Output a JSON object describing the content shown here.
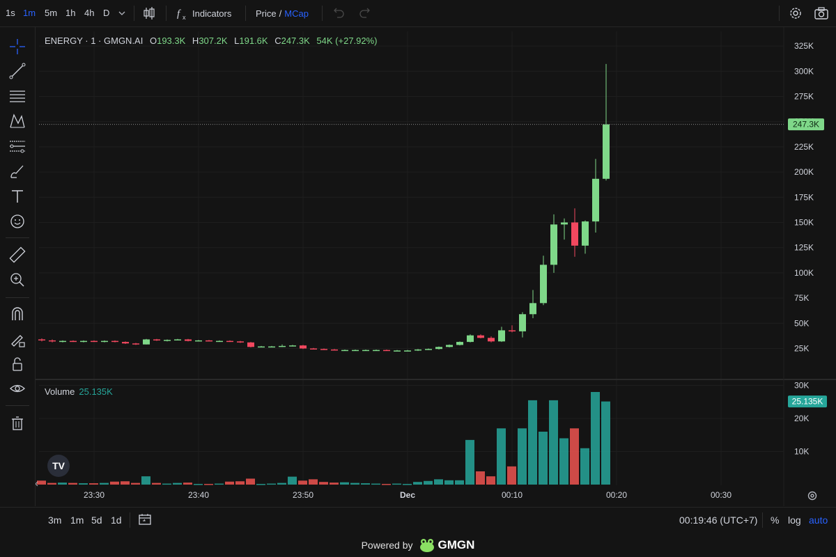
{
  "toolbar": {
    "timeframes": [
      "1s",
      "1m",
      "5m",
      "1h",
      "4h",
      "D"
    ],
    "active_timeframe": "1m",
    "indicators_label": "Indicators",
    "price_label": "Price",
    "separator": "/",
    "mcap_label": "MCap"
  },
  "legend": {
    "symbol": "ENERGY · 1 · GMGN.AI",
    "o_label": "O",
    "o_value": "193.3K",
    "h_label": "H",
    "h_value": "307.2K",
    "l_label": "L",
    "l_value": "191.6K",
    "c_label": "C",
    "c_value": "247.3K",
    "change": "54K (+27.92%)"
  },
  "volume_legend": {
    "label": "Volume",
    "value": "25.135K"
  },
  "price_axis": {
    "ticks": [
      "325K",
      "300K",
      "275K",
      "250K",
      "225K",
      "200K",
      "175K",
      "150K",
      "125K",
      "100K",
      "75K",
      "50K",
      "25K"
    ],
    "last_price_label": "247.3K"
  },
  "volume_axis": {
    "ticks": [
      "30K",
      "20K",
      "10K"
    ],
    "last_volume_label": "25.135K"
  },
  "time_axis": {
    "ticks": [
      "23:30",
      "23:40",
      "23:50",
      "Dec",
      "00:10",
      "00:20",
      "00:30"
    ]
  },
  "bottom": {
    "ranges": [
      "3m",
      "1m",
      "5d",
      "1d"
    ],
    "clock": "00:19:46 (UTC+7)",
    "percent_label": "%",
    "log_label": "log",
    "auto_label": "auto"
  },
  "footer": {
    "powered_by": "Powered by",
    "brand": "GMGN"
  },
  "colors": {
    "up": "#7fd889",
    "down": "#f2485f",
    "vol_up": "#26a69a",
    "vol_down": "#ef5350",
    "accent": "#2962ff"
  },
  "chart_data": {
    "type": "candlestick",
    "price_ylim": [
      0,
      325000
    ],
    "volume_ylim": [
      0,
      30000
    ],
    "last_price": 247300,
    "last_volume": 25135,
    "candles": [
      {
        "time": "23:25",
        "o": 34000,
        "h": 35000,
        "l": 32000,
        "c": 33000,
        "v": 1200
      },
      {
        "time": "23:26",
        "o": 33000,
        "h": 34000,
        "l": 31000,
        "c": 32000,
        "v": 500
      },
      {
        "time": "23:27",
        "o": 32000,
        "h": 33000,
        "l": 31000,
        "c": 32500,
        "v": 600
      },
      {
        "time": "23:28",
        "o": 32500,
        "h": 33000,
        "l": 31500,
        "c": 32000,
        "v": 500
      },
      {
        "time": "23:29",
        "o": 32000,
        "h": 33000,
        "l": 31000,
        "c": 32500,
        "v": 400
      },
      {
        "time": "23:30",
        "o": 32500,
        "h": 33000,
        "l": 31500,
        "c": 32000,
        "v": 400
      },
      {
        "time": "23:31",
        "o": 32000,
        "h": 33000,
        "l": 31000,
        "c": 32500,
        "v": 500
      },
      {
        "time": "23:32",
        "o": 32500,
        "h": 33000,
        "l": 31000,
        "c": 31500,
        "v": 900
      },
      {
        "time": "23:33",
        "o": 31500,
        "h": 32000,
        "l": 29500,
        "c": 30000,
        "v": 1000
      },
      {
        "time": "23:34",
        "o": 30000,
        "h": 30500,
        "l": 28500,
        "c": 29000,
        "v": 500
      },
      {
        "time": "23:35",
        "o": 29000,
        "h": 34500,
        "l": 29000,
        "c": 34000,
        "v": 2500
      },
      {
        "time": "23:36",
        "o": 34000,
        "h": 34500,
        "l": 32500,
        "c": 33000,
        "v": 500
      },
      {
        "time": "23:37",
        "o": 33000,
        "h": 34000,
        "l": 32000,
        "c": 33500,
        "v": 300
      },
      {
        "time": "23:38",
        "o": 33500,
        "h": 34500,
        "l": 33000,
        "c": 34000,
        "v": 500
      },
      {
        "time": "23:39",
        "o": 34000,
        "h": 34500,
        "l": 32000,
        "c": 32500,
        "v": 600
      },
      {
        "time": "23:40",
        "o": 32500,
        "h": 33500,
        "l": 32000,
        "c": 33000,
        "v": 200
      },
      {
        "time": "23:41",
        "o": 33000,
        "h": 33500,
        "l": 32000,
        "c": 32500,
        "v": 200
      },
      {
        "time": "23:42",
        "o": 32500,
        "h": 33000,
        "l": 32000,
        "c": 32500,
        "v": 300
      },
      {
        "time": "23:43",
        "o": 32500,
        "h": 33000,
        "l": 31500,
        "c": 32000,
        "v": 900
      },
      {
        "time": "23:44",
        "o": 32000,
        "h": 32500,
        "l": 30500,
        "c": 31000,
        "v": 1000
      },
      {
        "time": "23:45",
        "o": 31000,
        "h": 31500,
        "l": 26000,
        "c": 26500,
        "v": 1800
      },
      {
        "time": "23:46",
        "o": 26500,
        "h": 27500,
        "l": 26000,
        "c": 27000,
        "v": 200
      },
      {
        "time": "23:47",
        "o": 27000,
        "h": 27500,
        "l": 26500,
        "c": 27000,
        "v": 300
      },
      {
        "time": "23:48",
        "o": 27000,
        "h": 29000,
        "l": 26500,
        "c": 27500,
        "v": 500
      },
      {
        "time": "23:49",
        "o": 27500,
        "h": 28500,
        "l": 27000,
        "c": 28000,
        "v": 2400
      },
      {
        "time": "23:50",
        "o": 28000,
        "h": 28500,
        "l": 24500,
        "c": 25000,
        "v": 1200
      },
      {
        "time": "23:51",
        "o": 25000,
        "h": 25500,
        "l": 24000,
        "c": 24500,
        "v": 1600
      },
      {
        "time": "23:52",
        "o": 24500,
        "h": 25000,
        "l": 23500,
        "c": 24000,
        "v": 800
      },
      {
        "time": "23:53",
        "o": 24000,
        "h": 24500,
        "l": 23000,
        "c": 23500,
        "v": 600
      },
      {
        "time": "23:54",
        "o": 23500,
        "h": 24000,
        "l": 23000,
        "c": 23500,
        "v": 700
      },
      {
        "time": "23:55",
        "o": 23500,
        "h": 24000,
        "l": 23000,
        "c": 23500,
        "v": 500
      },
      {
        "time": "23:56",
        "o": 23500,
        "h": 24000,
        "l": 23000,
        "c": 23500,
        "v": 400
      },
      {
        "time": "23:57",
        "o": 23500,
        "h": 24000,
        "l": 23000,
        "c": 23500,
        "v": 300
      },
      {
        "time": "23:58",
        "o": 23500,
        "h": 24000,
        "l": 23000,
        "c": 23000,
        "v": 200
      },
      {
        "time": "23:59",
        "o": 23000,
        "h": 23500,
        "l": 22500,
        "c": 23000,
        "v": 300
      },
      {
        "time": "00:00",
        "o": 23000,
        "h": 23500,
        "l": 22500,
        "c": 23000,
        "v": 200
      },
      {
        "time": "00:01",
        "o": 23000,
        "h": 24500,
        "l": 22500,
        "c": 24000,
        "v": 800
      },
      {
        "time": "00:02",
        "o": 24000,
        "h": 25000,
        "l": 23500,
        "c": 24500,
        "v": 1100
      },
      {
        "time": "00:03",
        "o": 24500,
        "h": 27000,
        "l": 24000,
        "c": 26500,
        "v": 1600
      },
      {
        "time": "00:04",
        "o": 26500,
        "h": 29000,
        "l": 26000,
        "c": 28500,
        "v": 1300
      },
      {
        "time": "00:05",
        "o": 28500,
        "h": 32000,
        "l": 28000,
        "c": 31500,
        "v": 1300
      },
      {
        "time": "00:06",
        "o": 31500,
        "h": 39000,
        "l": 31000,
        "c": 38000,
        "v": 13500
      },
      {
        "time": "00:07",
        "o": 38000,
        "h": 39000,
        "l": 35000,
        "c": 35500,
        "v": 4000
      },
      {
        "time": "00:08",
        "o": 35500,
        "h": 37000,
        "l": 31000,
        "c": 32000,
        "v": 2500
      },
      {
        "time": "00:09",
        "o": 32000,
        "h": 46500,
        "l": 31500,
        "c": 43000,
        "v": 17000
      },
      {
        "time": "00:10",
        "o": 43000,
        "h": 48000,
        "l": 41000,
        "c": 42000,
        "v": 5500
      },
      {
        "time": "00:11",
        "o": 42000,
        "h": 61000,
        "l": 36000,
        "c": 59000,
        "v": 17000
      },
      {
        "time": "00:12",
        "o": 59000,
        "h": 83000,
        "l": 55000,
        "c": 70000,
        "v": 25500
      },
      {
        "time": "00:13",
        "o": 70000,
        "h": 117000,
        "l": 68000,
        "c": 108000,
        "v": 16000
      },
      {
        "time": "00:14",
        "o": 108000,
        "h": 158000,
        "l": 100000,
        "c": 148000,
        "v": 25500
      },
      {
        "time": "00:15",
        "o": 148000,
        "h": 154000,
        "l": 133000,
        "c": 150000,
        "v": 14000
      },
      {
        "time": "00:16",
        "o": 150000,
        "h": 164000,
        "l": 116000,
        "c": 127000,
        "v": 17000
      },
      {
        "time": "00:17",
        "o": 127000,
        "h": 152000,
        "l": 119000,
        "c": 151000,
        "v": 11000
      },
      {
        "time": "00:18",
        "o": 151000,
        "h": 213000,
        "l": 140000,
        "c": 193300,
        "v": 28000
      },
      {
        "time": "00:19",
        "o": 193300,
        "h": 307200,
        "l": 191600,
        "c": 247300,
        "v": 25135
      }
    ]
  }
}
